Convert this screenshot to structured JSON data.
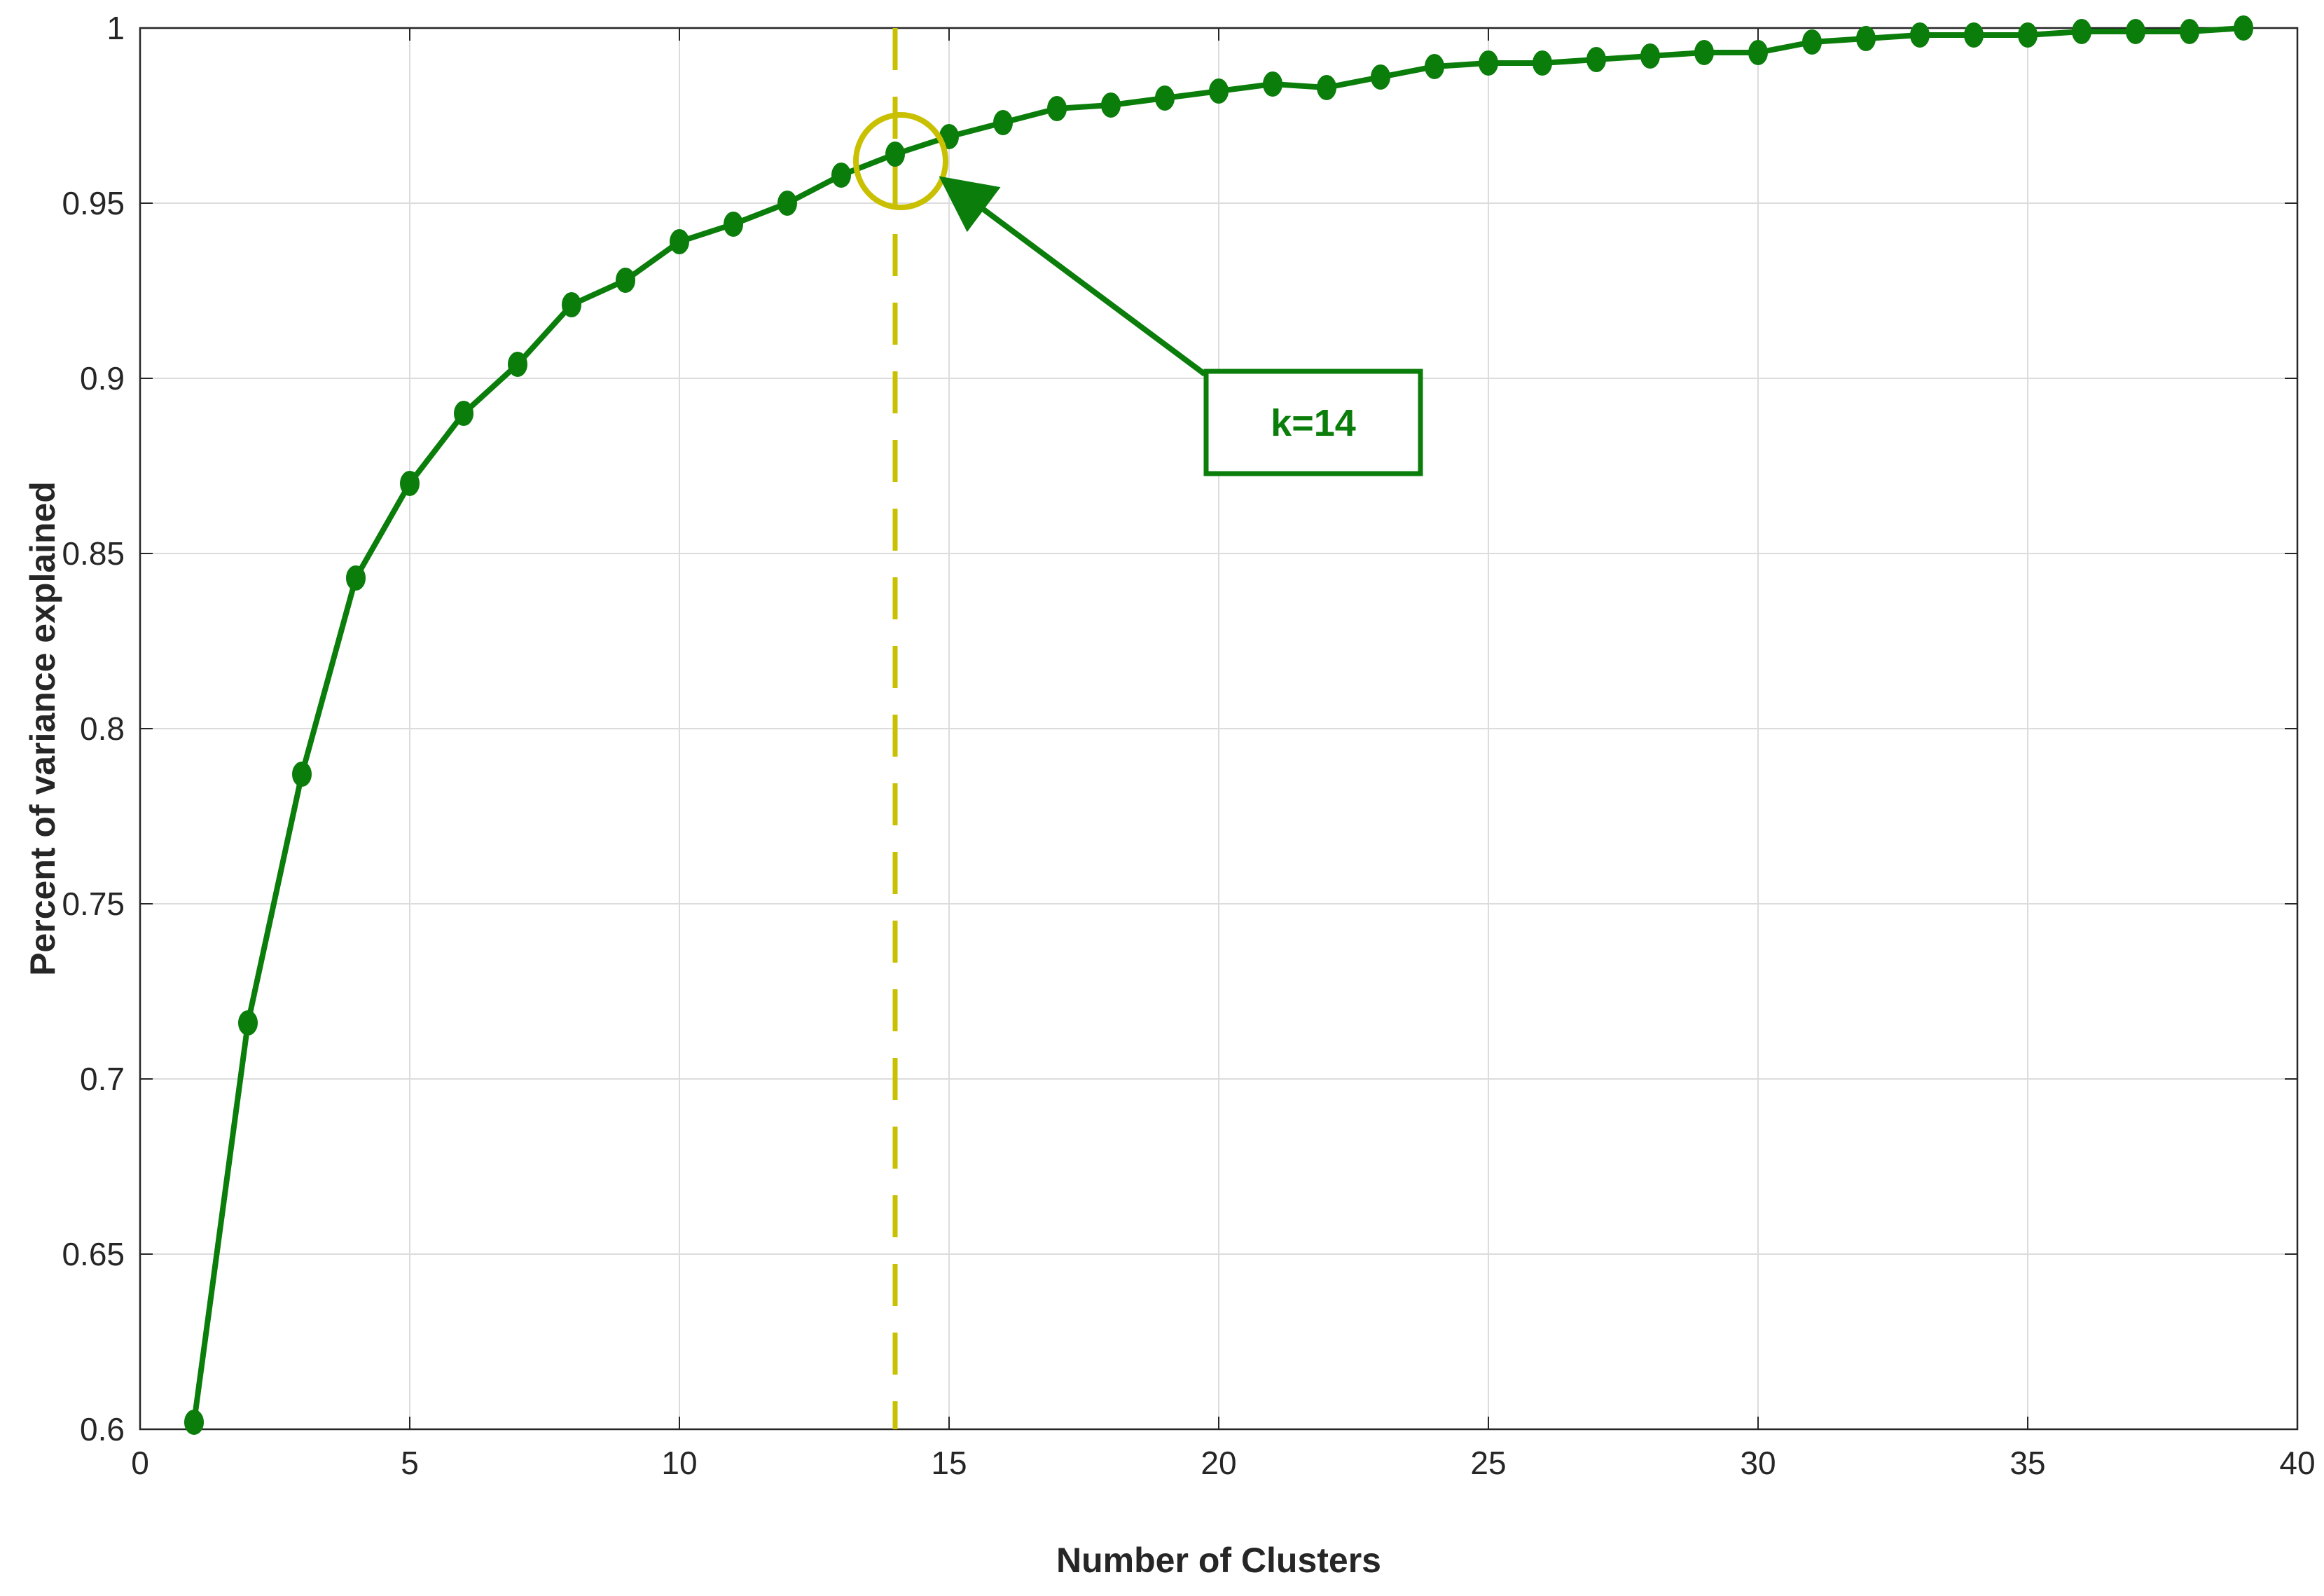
{
  "chart_data": {
    "type": "line",
    "title": "",
    "xlabel": "Number of Clusters",
    "ylabel": "Percent of variance explained",
    "xlim": [
      0,
      40
    ],
    "ylim": [
      0.6,
      1
    ],
    "xticks": [
      0,
      5,
      10,
      15,
      20,
      25,
      30,
      35,
      40
    ],
    "xtick_labels": [
      "0",
      "5",
      "10",
      "15",
      "20",
      "25",
      "30",
      "35",
      "40"
    ],
    "yticks": [
      0.6,
      0.65,
      0.7,
      0.75,
      0.8,
      0.85,
      0.9,
      0.95,
      1
    ],
    "ytick_labels": [
      "0.6",
      "0.65",
      "0.7",
      "0.75",
      "0.8",
      "0.85",
      "0.9",
      "0.95",
      "1"
    ],
    "grid": true,
    "legend": "none",
    "series": [
      {
        "color": "#0a7d0a",
        "marker": "circle",
        "x": [
          1,
          2,
          3,
          4,
          5,
          6,
          7,
          8,
          9,
          10,
          11,
          12,
          13,
          14,
          15,
          16,
          17,
          18,
          19,
          20,
          21,
          22,
          23,
          24,
          25,
          26,
          27,
          28,
          29,
          30,
          31,
          32,
          33,
          34,
          35,
          36,
          37,
          38,
          39
        ],
        "y": [
          0.602,
          0.716,
          0.787,
          0.843,
          0.87,
          0.89,
          0.904,
          0.921,
          0.928,
          0.939,
          0.944,
          0.95,
          0.958,
          0.964,
          0.969,
          0.973,
          0.977,
          0.978,
          0.98,
          0.982,
          0.984,
          0.983,
          0.986,
          0.989,
          0.99,
          0.99,
          0.991,
          0.992,
          0.993,
          0.993,
          0.996,
          0.997,
          0.998,
          0.998,
          0.998,
          0.999,
          0.999,
          0.999,
          1.0
        ]
      }
    ],
    "annotations": {
      "vline": {
        "x": 14,
        "color": "#c8c000",
        "style": "dashed"
      },
      "circle": {
        "x": 14,
        "y": 0.962,
        "color": "#c8c000"
      },
      "label": {
        "text": "k=14",
        "color": "#0a7d0a",
        "border_color": "#0a7d0a",
        "points_to": {
          "x": 14.9,
          "y": 0.957
        }
      }
    }
  }
}
